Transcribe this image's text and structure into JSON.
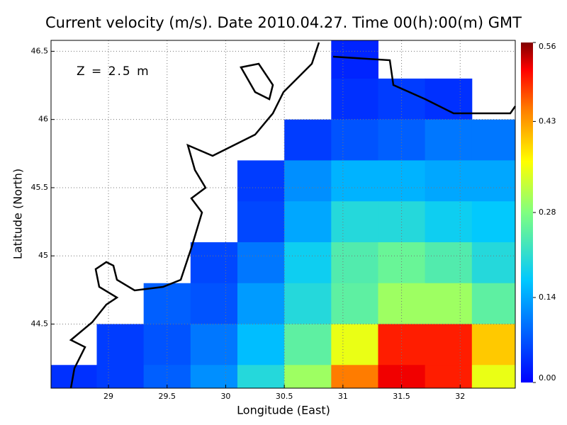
{
  "chart_data": {
    "type": "heatmap",
    "title": "Current velocity (m/s). Date 2010.04.27. Time 00(h):00(m) GMT",
    "annotation": "Z = 2.5 m",
    "x_label": "Longitude (East)",
    "y_label": "Latitude (North)",
    "xlim": [
      28.51,
      32.47
    ],
    "ylim": [
      44.03,
      46.58
    ],
    "xticks": [
      29,
      29.5,
      30,
      30.5,
      31,
      31.5,
      32
    ],
    "yticks": [
      44.5,
      45,
      45.5,
      46,
      46.5
    ],
    "grid": true,
    "lon_edges": [
      28.5,
      28.9,
      29.3,
      29.7,
      30.1,
      30.5,
      30.9,
      31.3,
      31.7,
      32.1,
      32.5
    ],
    "lat_edges": [
      46.6,
      46.3,
      46.0,
      45.7,
      45.4,
      45.1,
      44.8,
      44.5,
      44.2,
      44.0
    ],
    "values": [
      [
        null,
        null,
        null,
        null,
        null,
        null,
        0.03,
        null,
        null,
        null
      ],
      [
        null,
        null,
        null,
        null,
        null,
        null,
        0.04,
        0.05,
        0.04,
        null
      ],
      [
        null,
        null,
        null,
        null,
        null,
        0.05,
        0.07,
        0.08,
        0.1,
        0.1
      ],
      [
        null,
        null,
        null,
        null,
        0.05,
        0.12,
        0.15,
        0.15,
        0.14,
        0.14
      ],
      [
        null,
        null,
        null,
        null,
        0.06,
        0.14,
        0.2,
        0.2,
        0.18,
        0.17
      ],
      [
        null,
        null,
        null,
        0.06,
        0.1,
        0.18,
        0.24,
        0.26,
        0.24,
        0.2
      ],
      [
        null,
        null,
        0.08,
        0.07,
        0.13,
        0.2,
        0.25,
        0.3,
        0.3,
        0.25
      ],
      [
        null,
        0.05,
        0.07,
        0.1,
        0.16,
        0.25,
        0.35,
        0.5,
        0.5,
        0.4
      ],
      [
        0.04,
        0.05,
        0.08,
        0.12,
        0.2,
        0.3,
        0.45,
        0.52,
        0.5,
        0.35
      ]
    ],
    "clim": [
      0,
      0.56
    ],
    "cticks": [
      {
        "value": 0,
        "label": "0.00"
      },
      {
        "value": 0.14,
        "label": "0.14"
      },
      {
        "value": 0.28,
        "label": "0.28"
      },
      {
        "value": 0.43,
        "label": "0.43"
      },
      {
        "value": 0.56,
        "label": "0.56"
      }
    ]
  }
}
